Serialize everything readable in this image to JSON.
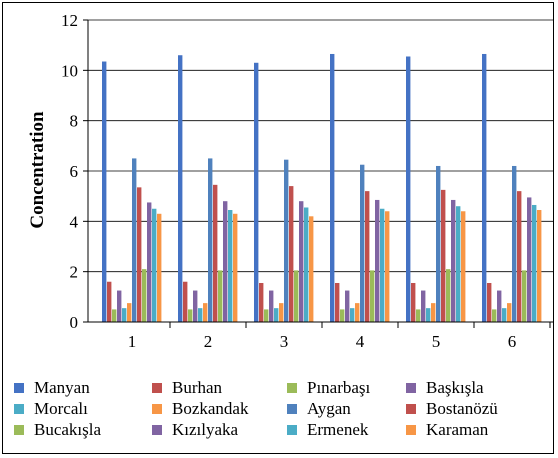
{
  "chart_data": {
    "type": "bar",
    "title": "",
    "xlabel": "",
    "ylabel": "Concentration",
    "ylim": [
      0,
      12
    ],
    "yticks": [
      0,
      2,
      4,
      6,
      8,
      10,
      12
    ],
    "categories": [
      "1",
      "2",
      "3",
      "4",
      "5",
      "6"
    ],
    "grid": "horizontal",
    "legend_position": "bottom",
    "series": [
      {
        "name": "Manyan",
        "color": "#4472C4",
        "values": [
          10.35,
          10.6,
          10.3,
          10.65,
          10.55,
          10.65
        ]
      },
      {
        "name": "Burhan",
        "color": "#C0504D",
        "values": [
          1.6,
          1.6,
          1.55,
          1.55,
          1.55,
          1.55
        ]
      },
      {
        "name": "Pınarbaşı",
        "color": "#9BBB59",
        "values": [
          0.5,
          0.5,
          0.5,
          0.5,
          0.5,
          0.5
        ]
      },
      {
        "name": "Başkışla",
        "color": "#8064A2",
        "values": [
          1.25,
          1.25,
          1.25,
          1.25,
          1.25,
          1.25
        ]
      },
      {
        "name": "Morcalı",
        "color": "#4BACC6",
        "values": [
          0.55,
          0.55,
          0.55,
          0.55,
          0.55,
          0.55
        ]
      },
      {
        "name": "Bozkandak",
        "color": "#F79646",
        "values": [
          0.75,
          0.75,
          0.75,
          0.75,
          0.75,
          0.75
        ]
      },
      {
        "name": "Aygan",
        "color": "#4F81BD",
        "values": [
          6.5,
          6.5,
          6.45,
          6.25,
          6.2,
          6.2
        ]
      },
      {
        "name": "Bostanözü",
        "color": "#C0504D",
        "values": [
          5.35,
          5.45,
          5.4,
          5.2,
          5.25,
          5.2
        ]
      },
      {
        "name": "Bucakışla",
        "color": "#9BBB59",
        "values": [
          2.1,
          2.05,
          2.05,
          2.05,
          2.1,
          2.05
        ]
      },
      {
        "name": "Kızılyaka",
        "color": "#8064A2",
        "values": [
          4.75,
          4.8,
          4.8,
          4.85,
          4.85,
          4.95
        ]
      },
      {
        "name": "Ermenek",
        "color": "#4BACC6",
        "values": [
          4.5,
          4.45,
          4.55,
          4.5,
          4.6,
          4.65
        ]
      },
      {
        "name": "Karaman",
        "color": "#F79646",
        "values": [
          4.3,
          4.3,
          4.2,
          4.4,
          4.4,
          4.45
        ]
      }
    ]
  }
}
